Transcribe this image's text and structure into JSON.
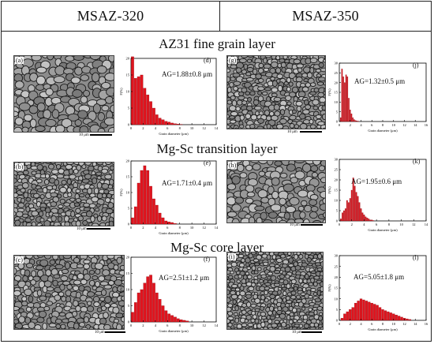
{
  "headers": {
    "left": "MSAZ-320",
    "right": "MSAZ-350"
  },
  "sections": [
    "AZ31 fine grain layer",
    "Mg-Sc transition layer",
    "Mg-Sc core layer"
  ],
  "micrographs": [
    {
      "tag": "(a)",
      "scale_label": "10 μm"
    },
    {
      "tag": "(g)",
      "scale_label": "10 μm"
    },
    {
      "tag": "(b)",
      "scale_label": "10 μm"
    },
    {
      "tag": "(h)",
      "scale_label": "10 μm"
    },
    {
      "tag": "(c)",
      "scale_label": "10 μm"
    },
    {
      "tag": "(i)",
      "scale_label": "10 μm"
    }
  ],
  "chart_data": [
    {
      "type": "bar",
      "tag": "(d)",
      "annotation": "AG=1.88±0.8 μm",
      "xlabel": "Grain diameter (μm)",
      "ylabel": "F(%)",
      "ylim": [
        0,
        20
      ],
      "yticks": [
        0,
        5,
        10,
        15,
        20
      ],
      "xticks": [
        0,
        2,
        4,
        6,
        8,
        10,
        12,
        14
      ],
      "x": [
        0.25,
        0.75,
        1.25,
        1.75,
        2.25,
        2.75,
        3.25,
        3.75,
        4.25,
        4.75,
        5.25,
        5.75,
        6.25,
        6.75,
        7.25,
        7.75,
        8.25
      ],
      "values": [
        20.5,
        14,
        14.5,
        15,
        11,
        9,
        7,
        5,
        3,
        2,
        1.5,
        1,
        0.8,
        0.5,
        0.3,
        0.2,
        0.1
      ]
    },
    {
      "type": "bar",
      "tag": "(j)",
      "annotation": "AG=1.32±0.5 μm",
      "xlabel": "Grain diameter (μm)",
      "ylabel": "F(%)",
      "ylim": [
        0,
        30
      ],
      "yticks": [
        0,
        5,
        10,
        15,
        20,
        25,
        30
      ],
      "xticks": [
        0,
        2,
        4,
        6,
        8,
        10,
        12,
        14,
        16
      ],
      "x": [
        0.25,
        0.5,
        0.75,
        1,
        1.25,
        1.5,
        1.75,
        2,
        2.25,
        2.5,
        2.75,
        3,
        3.25,
        3.5
      ],
      "values": [
        2,
        27,
        23,
        20,
        24,
        23,
        12,
        6,
        4,
        2,
        1,
        0.5,
        0.3,
        0.2
      ]
    },
    {
      "type": "bar",
      "tag": "(e)",
      "annotation": "AG=1.71±0.4 μm",
      "xlabel": "Grain diameter (μm)",
      "ylabel": "F(%)",
      "ylim": [
        0,
        20
      ],
      "yticks": [
        0,
        5,
        10,
        15,
        20
      ],
      "xticks": [
        0,
        2,
        4,
        6,
        8,
        10,
        12,
        14
      ],
      "x": [
        0.25,
        0.75,
        1.25,
        1.75,
        2.25,
        2.75,
        3.25,
        3.75,
        4.25,
        4.75,
        5.25,
        5.75,
        6.25,
        6.75,
        7.25
      ],
      "values": [
        2,
        5.5,
        13,
        17,
        18.5,
        17,
        12,
        8,
        6,
        3.5,
        2,
        1,
        0.7,
        0.5,
        0.2
      ]
    },
    {
      "type": "bar",
      "tag": "(k)",
      "annotation": "AG=1.95±0.6 μm",
      "xlabel": "Grain diameter (μm)",
      "ylabel": "F(%)",
      "ylim": [
        0,
        30
      ],
      "yticks": [
        0,
        5,
        10,
        15,
        20,
        25,
        30
      ],
      "xticks": [
        0,
        2,
        4,
        6,
        8,
        10,
        12,
        14
      ],
      "x": [
        0.25,
        0.5,
        0.75,
        1,
        1.25,
        1.5,
        1.75,
        2,
        2.25,
        2.5,
        2.75,
        3,
        3.25,
        3.5,
        3.75,
        4,
        4.25,
        4.5,
        4.75,
        5,
        5.25,
        5.5
      ],
      "values": [
        1,
        4,
        5,
        6,
        10,
        9,
        11,
        15,
        21,
        17,
        14,
        12,
        9,
        6,
        4,
        3,
        2,
        1.5,
        1,
        0.5,
        0.5,
        0.2
      ]
    },
    {
      "type": "bar",
      "tag": "(f)",
      "annotation": "AG=2.51±1.2 μm",
      "xlabel": "Grain diameter (μm)",
      "ylabel": "F(%)",
      "ylim": [
        0,
        20
      ],
      "yticks": [
        0,
        5,
        10,
        15,
        20
      ],
      "xticks": [
        0,
        2,
        4,
        6,
        8,
        10,
        12,
        14
      ],
      "x": [
        0.25,
        0.75,
        1.25,
        1.75,
        2.25,
        2.75,
        3.25,
        3.75,
        4.25,
        4.75,
        5.25,
        5.75,
        6.25,
        6.75,
        7.25,
        7.75,
        8.25,
        8.75,
        9.25
      ],
      "values": [
        3,
        6,
        9,
        10,
        12,
        14,
        14.5,
        12,
        9,
        7,
        5,
        3.5,
        2.5,
        2,
        1.5,
        1,
        0.7,
        0.5,
        0.3
      ]
    },
    {
      "type": "bar",
      "tag": "(l)",
      "annotation": "AG=5.05±1.8 μm",
      "xlabel": "Grain diameter (μm)",
      "ylabel": "F(%)",
      "ylim": [
        0,
        30
      ],
      "yticks": [
        0,
        5,
        10,
        15,
        20,
        25,
        30
      ],
      "xticks": [
        0,
        2,
        4,
        6,
        8,
        10,
        12,
        14,
        16
      ],
      "x": [
        0.5,
        1,
        1.5,
        2,
        2.5,
        3,
        3.5,
        4,
        4.5,
        5,
        5.5,
        6,
        6.5,
        7,
        7.5,
        8,
        8.5,
        9,
        9.5,
        10,
        10.5,
        11,
        11.5,
        12,
        12.5,
        13
      ],
      "values": [
        1,
        3,
        4,
        5,
        6,
        8,
        9,
        10,
        9.5,
        9,
        8.5,
        8,
        7.5,
        7,
        6,
        5,
        4.5,
        4,
        3.5,
        3,
        2.5,
        2,
        1.5,
        1,
        0.7,
        0.4
      ]
    }
  ]
}
